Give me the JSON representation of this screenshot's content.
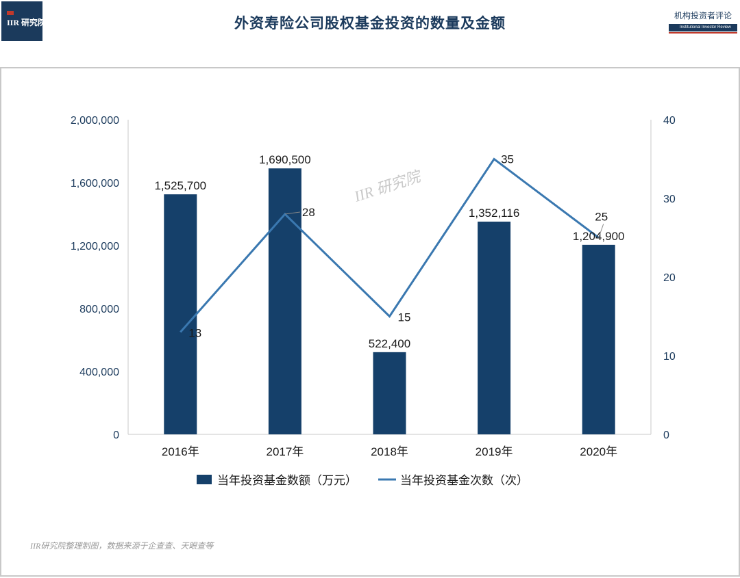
{
  "header": {
    "logo_text": "IIR 研究院",
    "title": "外资寿险公司股权基金投资的数量及金额",
    "brand_cn": "机构投资者评论",
    "brand_en": "Institutional Investor Review"
  },
  "watermark": "IIR 研究院",
  "source_note": "IIR研究院整理制图，数据来源于企查查、天眼查等",
  "colors": {
    "bar": "#15406a",
    "line": "#3a78b0",
    "axis_text": "#1b3a5c"
  },
  "chart_data": {
    "type": "bar",
    "title": "",
    "categories": [
      "2016年",
      "2017年",
      "2018年",
      "2019年",
      "2020年"
    ],
    "series": [
      {
        "name": "当年投资基金数额（万元）",
        "type": "bar",
        "axis": "left",
        "values": [
          1525700,
          1690500,
          522400,
          1352116,
          1204900
        ],
        "labels": [
          "1,525,700",
          "1,690,500",
          "522,400",
          "1,352,116",
          "1,204,900"
        ]
      },
      {
        "name": "当年投资基金次数（次）",
        "type": "line",
        "axis": "right",
        "values": [
          13,
          28,
          15,
          35,
          25
        ],
        "labels": [
          "13",
          "28",
          "15",
          "35",
          "25"
        ]
      }
    ],
    "y_left": {
      "min": 0,
      "max": 2000000,
      "ticks": [
        "0",
        "400,000",
        "800,000",
        "1,200,000",
        "1,600,000",
        "2,000,000"
      ]
    },
    "y_right": {
      "min": 0,
      "max": 40,
      "ticks": [
        "0",
        "10",
        "20",
        "30",
        "40"
      ]
    },
    "legend_position": "bottom"
  }
}
